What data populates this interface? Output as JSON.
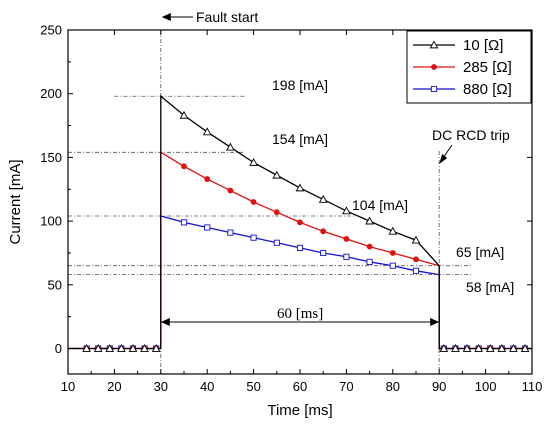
{
  "chart_data": {
    "type": "line",
    "xlabel": "Time [ms]",
    "ylabel": "Current [mA]",
    "xlim": [
      10,
      110
    ],
    "ylim": [
      -20,
      250
    ],
    "xticks": [
      10,
      20,
      30,
      40,
      50,
      60,
      70,
      80,
      90,
      100,
      110
    ],
    "yticks": [
      0,
      50,
      100,
      150,
      200,
      250
    ],
    "grid": false,
    "legend_position": "top-right",
    "series": [
      {
        "name": "10 [Ω]",
        "color": "#000000",
        "marker": "open-triangle",
        "x": [
          10,
          30,
          30,
          35,
          40,
          45,
          50,
          55,
          60,
          65,
          70,
          75,
          80,
          85,
          90,
          90,
          110
        ],
        "y": [
          0,
          0,
          198,
          183,
          170,
          158,
          146,
          136,
          126,
          117,
          108,
          100,
          92,
          85,
          65,
          0,
          0
        ]
      },
      {
        "name": "285 [Ω]",
        "color": "#e01010",
        "marker": "filled-circle",
        "x": [
          10,
          30,
          30,
          35,
          40,
          45,
          50,
          55,
          60,
          65,
          70,
          75,
          80,
          85,
          90,
          90,
          110
        ],
        "y": [
          0,
          0,
          154,
          143,
          133,
          124,
          115,
          107,
          99,
          92,
          86,
          80,
          75,
          70,
          65,
          0,
          0
        ]
      },
      {
        "name": "880 [Ω]",
        "color": "#1010d0",
        "marker": "open-square",
        "x": [
          10,
          30,
          30,
          35,
          40,
          45,
          50,
          55,
          60,
          65,
          70,
          75,
          80,
          85,
          90,
          90,
          110
        ],
        "y": [
          0,
          0,
          104,
          99,
          95,
          91,
          87,
          83,
          79,
          75,
          72,
          68,
          65,
          61,
          58,
          0,
          0
        ]
      }
    ],
    "annotations": {
      "fault_start": "Fault start",
      "dc_rcd_trip": "DC RCD trip",
      "duration": "60 [ms]",
      "v198": "198 [mA]",
      "v154": "154 [mA]",
      "v104": "104 [mA]",
      "v65": "65 [mA]",
      "v58": "58 [mA]"
    }
  }
}
